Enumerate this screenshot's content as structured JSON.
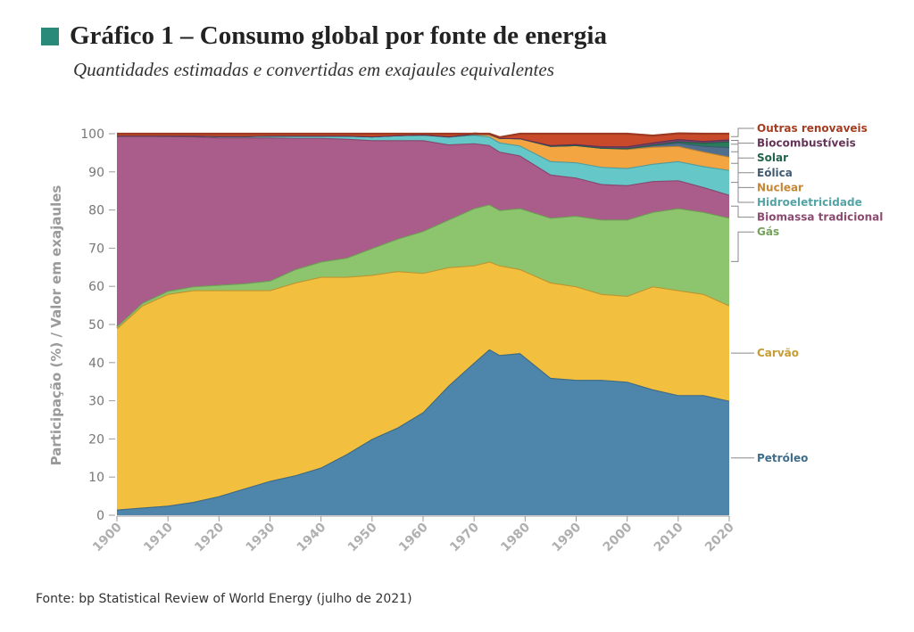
{
  "title": "Gráfico 1 – Consumo global por fonte de energia",
  "subtitle": "Quantidades estimadas e convertidas em exajaules equivalentes",
  "source": "Fonte: bp Statistical Review of World Energy (julho de 2021)",
  "colors": {
    "title_square": "#2a8a7a",
    "petroleo": "#4d86aa",
    "carvao": "#f2bf3e",
    "gas": "#8dc56e",
    "biomassa": "#aa5c8a",
    "hidro": "#66c7c9",
    "nuclear": "#f2a540",
    "eolica": "#4f6f8c",
    "solar": "#2a7a5c",
    "biocomb": "#7a3f6b",
    "outras": "#c84a2a"
  },
  "chart_data": {
    "type": "area",
    "stacked": true,
    "title": "Gráfico 1 – Consumo global por fonte de energia",
    "subtitle": "Quantidades estimadas e convertidas em exajaules equivalentes",
    "xlabel": "",
    "ylabel": "Participação (%) / Valor em exajaules",
    "xlim": [
      1900,
      2020
    ],
    "ylim": [
      0,
      100
    ],
    "x_ticks": [
      "1900",
      "1910",
      "1920",
      "1930",
      "1940",
      "1950",
      "1960",
      "1970",
      "1980",
      "1990",
      "2000",
      "2010",
      "2020"
    ],
    "y_ticks": [
      "0",
      "10",
      "20",
      "30",
      "40",
      "50",
      "60",
      "70",
      "80",
      "90",
      "100"
    ],
    "x": [
      1900,
      1905,
      1910,
      1915,
      1920,
      1925,
      1930,
      1935,
      1940,
      1945,
      1950,
      1955,
      1960,
      1965,
      1970,
      1973,
      1975,
      1979,
      1985,
      1990,
      1995,
      2000,
      2005,
      2010,
      2015,
      2020
    ],
    "series": [
      {
        "key": "petroleo",
        "name": "Petróleo",
        "values": [
          1.5,
          2,
          2.5,
          3.5,
          5,
          7,
          9,
          10.5,
          12.5,
          16,
          20,
          23,
          27,
          34,
          40,
          43.5,
          42,
          42.5,
          36,
          35.5,
          35.5,
          35,
          33,
          31.5,
          31.5,
          30
        ]
      },
      {
        "key": "carvao",
        "name": "Carvão",
        "values": [
          47.5,
          53,
          55.5,
          55.5,
          54,
          52,
          50,
          50.5,
          50,
          46.5,
          43,
          41,
          36.5,
          31,
          25.5,
          23,
          23.5,
          22,
          25,
          24.5,
          22.5,
          22.5,
          27,
          27.5,
          26.5,
          25
        ]
      },
      {
        "key": "gas",
        "name": "Gás",
        "values": [
          0.5,
          0.7,
          0.8,
          1,
          1.4,
          1.8,
          2.5,
          3.5,
          4,
          5,
          7,
          8.5,
          11,
          12.5,
          15,
          15,
          14.5,
          16,
          17,
          18.5,
          19.5,
          20,
          19.5,
          21.5,
          21.5,
          23
        ]
      },
      {
        "key": "biomassa",
        "name": "Biomassa tradicional",
        "values": [
          50,
          43.8,
          40.6,
          39.3,
          38.6,
          38.2,
          37.5,
          34.4,
          32.4,
          31.2,
          28.3,
          25.8,
          23.8,
          19.7,
          17,
          15.5,
          15.3,
          13.8,
          11.3,
          10,
          9.3,
          9,
          8.1,
          7.3,
          6.5,
          6
        ]
      },
      {
        "key": "hidro",
        "name": "Hidroeletricidade",
        "values": [
          0,
          0,
          0.1,
          0.2,
          0.4,
          0.4,
          0.5,
          0.6,
          0.6,
          0.8,
          1,
          1.3,
          1.5,
          2,
          2.2,
          2.3,
          2.4,
          2.6,
          3.5,
          4,
          4.5,
          4.5,
          4.5,
          5,
          5.5,
          6.5
        ]
      },
      {
        "key": "nuclear",
        "name": "Nuclear",
        "values": [
          0,
          0,
          0,
          0,
          0,
          0,
          0,
          0,
          0,
          0,
          0,
          0,
          0,
          0.1,
          0.3,
          0.6,
          1.2,
          1.9,
          4,
          4.5,
          5,
          5,
          4.5,
          4,
          3.8,
          3.5
        ]
      },
      {
        "key": "eolica",
        "name": "Eólica",
        "values": [
          0,
          0,
          0,
          0,
          0,
          0,
          0,
          0,
          0,
          0,
          0,
          0,
          0,
          0,
          0,
          0,
          0,
          0,
          0,
          0,
          0,
          0.2,
          0.4,
          0.9,
          1.5,
          2.5
        ]
      },
      {
        "key": "solar",
        "name": "Solar",
        "values": [
          0,
          0,
          0,
          0,
          0,
          0,
          0,
          0,
          0,
          0,
          0,
          0,
          0,
          0,
          0,
          0,
          0,
          0,
          0,
          0,
          0,
          0,
          0.1,
          0.3,
          0.8,
          1.5
        ]
      },
      {
        "key": "biocomb",
        "name": "Biocombustíveis",
        "values": [
          0,
          0,
          0,
          0,
          0,
          0,
          0,
          0,
          0,
          0,
          0,
          0,
          0,
          0,
          0,
          0,
          0,
          0,
          0.2,
          0.3,
          0.4,
          0.5,
          0.6,
          0.6,
          0.5,
          0.5
        ]
      },
      {
        "key": "outras",
        "name": "Outras renovaveis",
        "values": [
          0.5,
          0.5,
          0.5,
          0.5,
          0.6,
          0.6,
          0.5,
          0.5,
          0.5,
          0.5,
          0.7,
          0.4,
          0.2,
          0.7,
          0,
          0.1,
          0.2,
          1.2,
          3,
          2.7,
          3.3,
          3.3,
          1.8,
          1.5,
          1.9,
          1.5
        ]
      }
    ],
    "legend": {
      "placement": "right",
      "top_group": [
        "Outras renovaveis",
        "Biocombustíveis",
        "Solar",
        "Eólica",
        "Nuclear",
        "Hidroeletricidade",
        "Biomassa tradicional",
        "Gás"
      ],
      "direct_labels": [
        "Carvão",
        "Petróleo"
      ]
    },
    "grid": false
  }
}
